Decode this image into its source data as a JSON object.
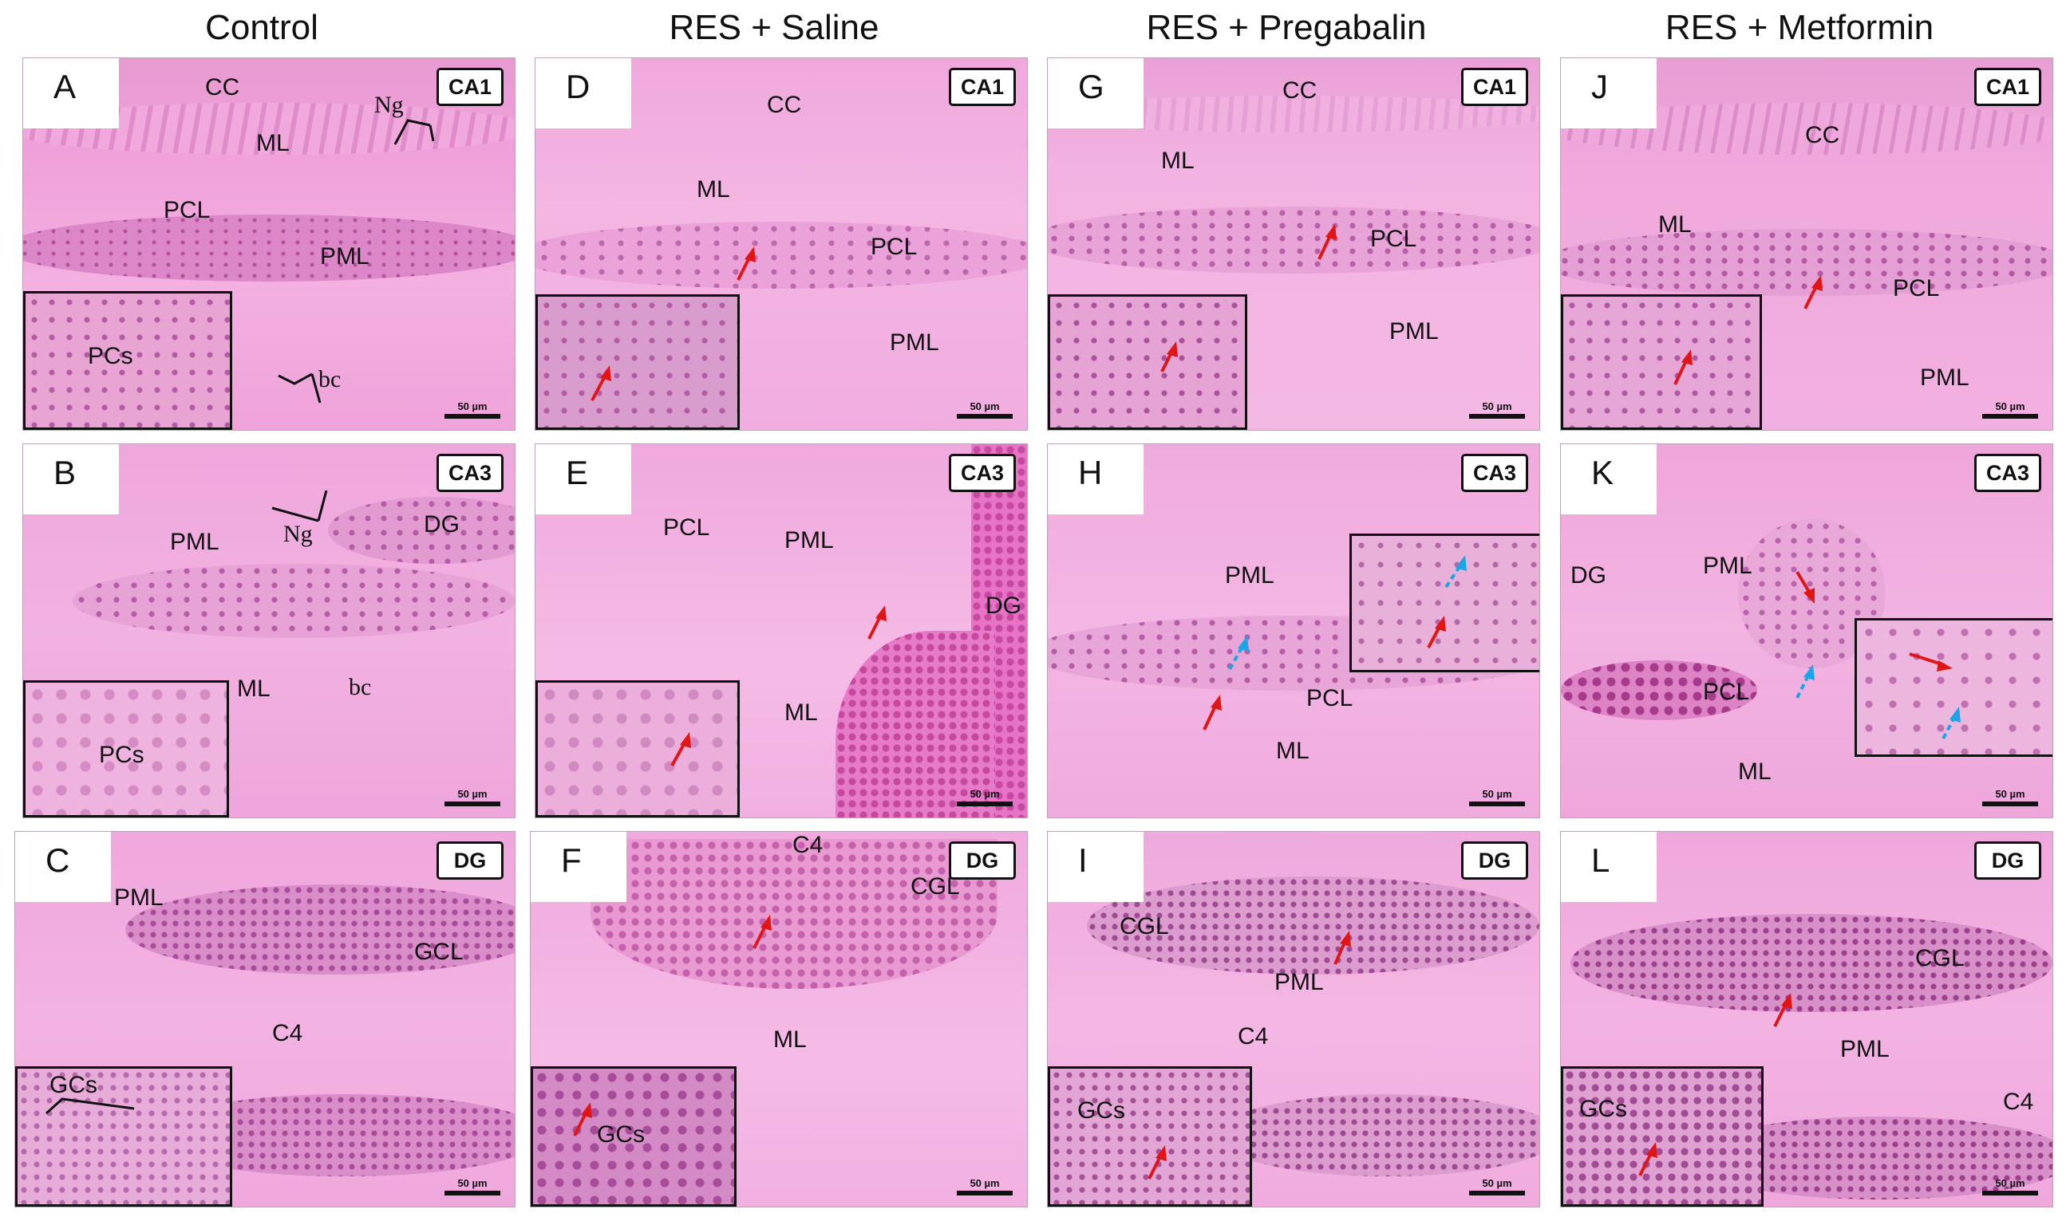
{
  "columns": [
    "Control",
    "RES + Saline",
    "RES + Pregabalin",
    "RES + Metformin"
  ],
  "scale_bar": "50 µm",
  "colors": {
    "tissue": "#ef9fd9",
    "layer_dark": "#c860b0",
    "nuclei": "#7a2c7e",
    "red_arrow": "#e01616",
    "blue_arrow": "#1aa6e6"
  },
  "panels": {
    "A": {
      "letter": "A",
      "region": "CA1",
      "labels": [
        "CC",
        "ML",
        "Ng",
        "PCL",
        "PML",
        "bc"
      ],
      "inset_label": "PCs"
    },
    "B": {
      "letter": "B",
      "region": "CA3",
      "labels": [
        "PML",
        "Ng",
        "DG",
        "ML",
        "bc"
      ],
      "inset_label": "PCs"
    },
    "C": {
      "letter": "C",
      "region": "DG",
      "labels": [
        "PML",
        "GCL",
        "C4"
      ],
      "inset_label": "GCs"
    },
    "D": {
      "letter": "D",
      "region": "CA1",
      "labels": [
        "CC",
        "ML",
        "PCL",
        "PML"
      ]
    },
    "E": {
      "letter": "E",
      "region": "CA3",
      "labels": [
        "PCL",
        "PML",
        "DG",
        "ML"
      ]
    },
    "F": {
      "letter": "F",
      "region": "DG",
      "labels": [
        "C4",
        "CGL",
        "ML"
      ],
      "inset_label": "GCs"
    },
    "G": {
      "letter": "G",
      "region": "CA1",
      "labels": [
        "CC",
        "ML",
        "PCL",
        "PML"
      ]
    },
    "H": {
      "letter": "H",
      "region": "CA3",
      "labels": [
        "PML",
        "PCL",
        "ML"
      ]
    },
    "I": {
      "letter": "I",
      "region": "DG",
      "labels": [
        "CGL",
        "PML",
        "C4"
      ],
      "inset_label": "GCs"
    },
    "J": {
      "letter": "J",
      "region": "CA1",
      "labels": [
        "CC",
        "ML",
        "PCL",
        "PML"
      ]
    },
    "K": {
      "letter": "K",
      "region": "CA3",
      "labels": [
        "DG",
        "PML",
        "PCL",
        "ML"
      ]
    },
    "L": {
      "letter": "L",
      "region": "DG",
      "labels": [
        "CGL",
        "PML",
        "C4"
      ],
      "inset_label": "GCs"
    }
  }
}
